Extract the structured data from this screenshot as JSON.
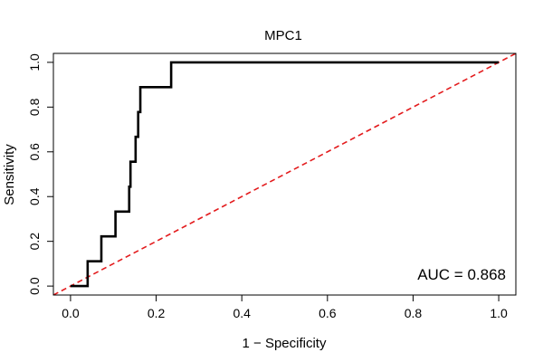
{
  "chart_data": {
    "type": "line",
    "title": "MPC1",
    "xlabel": "1 − Specificity",
    "ylabel": "Sensitivity",
    "xlim": [
      -0.04,
      1.04
    ],
    "ylim": [
      -0.04,
      1.04
    ],
    "x_ticks": [
      0.0,
      0.2,
      0.4,
      0.6,
      0.8,
      1.0
    ],
    "y_ticks": [
      0.0,
      0.2,
      0.4,
      0.6,
      0.8,
      1.0
    ],
    "x_tick_labels": [
      "0.0",
      "0.2",
      "0.4",
      "0.6",
      "0.8",
      "1.0"
    ],
    "y_tick_labels": [
      "0.0",
      "0.2",
      "0.4",
      "0.6",
      "0.8",
      "1.0"
    ],
    "grid": false,
    "annotation": "AUC = 0.868",
    "series": [
      {
        "color": "#000000",
        "x": [
          0.0,
          0.04,
          0.04,
          0.072,
          0.072,
          0.105,
          0.105,
          0.137,
          0.137,
          0.14,
          0.14,
          0.152,
          0.152,
          0.158,
          0.158,
          0.163,
          0.163,
          0.235,
          0.235,
          1.0
        ],
        "y": [
          0.0,
          0.0,
          0.111,
          0.111,
          0.222,
          0.222,
          0.333,
          0.333,
          0.444,
          0.444,
          0.556,
          0.556,
          0.667,
          0.667,
          0.778,
          0.778,
          0.889,
          0.889,
          1.0,
          1.0
        ]
      },
      {
        "color": "#e31a1c",
        "style": "dashed",
        "x": [
          -0.04,
          1.04
        ],
        "y": [
          -0.04,
          1.04
        ]
      }
    ]
  }
}
